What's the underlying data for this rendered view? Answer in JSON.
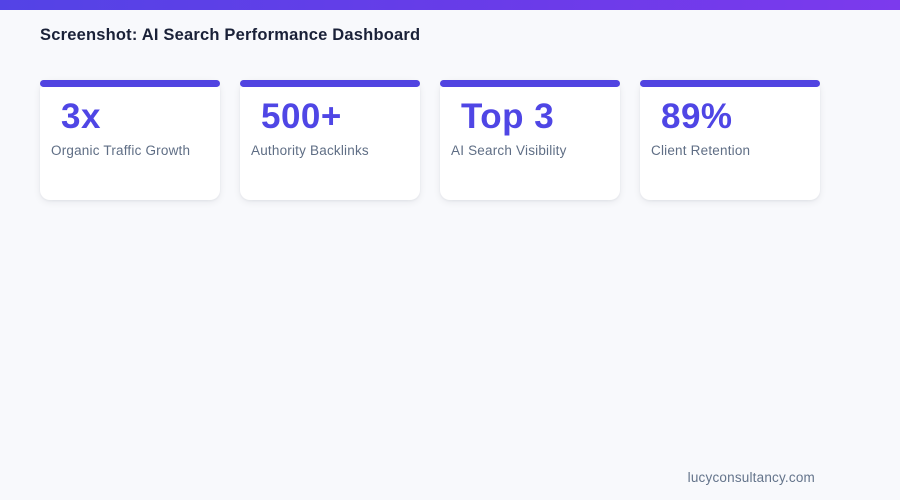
{
  "header": {
    "title": "Screenshot: AI Search Performance Dashboard"
  },
  "stats": [
    {
      "value": "3x",
      "label": "Organic Traffic Growth"
    },
    {
      "value": "500+",
      "label": "Authority Backlinks"
    },
    {
      "value": "Top 3",
      "label": "AI Search Visibility"
    },
    {
      "value": "89%",
      "label": "Client Retention"
    }
  ],
  "footer": {
    "domain": "lucyconsultancy.com"
  },
  "colors": {
    "accent": "#4f46e5",
    "accent_gradient_start": "#5343e6",
    "accent_gradient_end": "#7c3aed",
    "card_accent_bar": "#5144e1",
    "title_text": "#1a2138",
    "label_text": "#5f6e85",
    "background": "#f8f9fc",
    "card_background": "#ffffff"
  }
}
